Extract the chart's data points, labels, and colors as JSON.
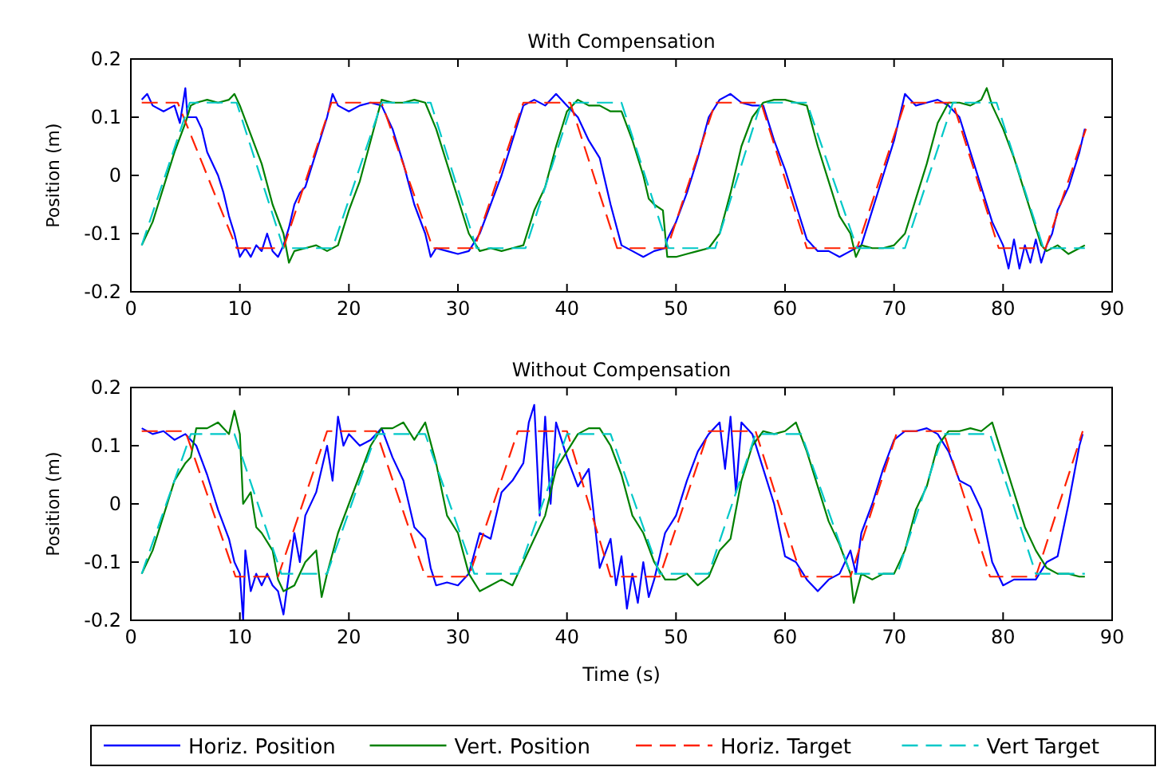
{
  "chart_data": [
    {
      "type": "line",
      "title": "With Compensation",
      "ylabel": "Position (m)",
      "xlim": [
        0,
        90
      ],
      "ylim": [
        -0.2,
        0.2
      ],
      "xticks": [
        0,
        10,
        20,
        30,
        40,
        50,
        60,
        70,
        80,
        90
      ],
      "yticks": [
        -0.2,
        -0.1,
        0,
        0.1,
        0.2
      ],
      "series": [
        {
          "color": "#0000ff",
          "line_style": "solid",
          "x": [
            1,
            1.5,
            2,
            3,
            4,
            4.5,
            5,
            5.2,
            6,
            6.5,
            7,
            8,
            8.5,
            9,
            9.5,
            10,
            10.5,
            11,
            11.5,
            12,
            12.5,
            13,
            13.5,
            14,
            14.5,
            15,
            15.5,
            16,
            17,
            18,
            18.5,
            19,
            20,
            21,
            22,
            23,
            24,
            25,
            26,
            27,
            27.5,
            28,
            29,
            30,
            31,
            32,
            33,
            34,
            35,
            36,
            37,
            38,
            39,
            40,
            41,
            42,
            43,
            44,
            45,
            46,
            47,
            48,
            49,
            49.2,
            50,
            51,
            52,
            53,
            54,
            55,
            56,
            57,
            58,
            59,
            60,
            61,
            62,
            63,
            64,
            65,
            66,
            67,
            68,
            69,
            70,
            71,
            72,
            73,
            74,
            75,
            76,
            77,
            78,
            79,
            80,
            80.5,
            81,
            81.5,
            82,
            82.5,
            83,
            83.5,
            84,
            84.5,
            85,
            86,
            87,
            87.5
          ],
          "values": [
            0.13,
            0.14,
            0.12,
            0.11,
            0.12,
            0.09,
            0.15,
            0.1,
            0.1,
            0.08,
            0.04,
            0,
            -0.03,
            -0.07,
            -0.1,
            -0.14,
            -0.125,
            -0.14,
            -0.12,
            -0.13,
            -0.1,
            -0.13,
            -0.14,
            -0.12,
            -0.09,
            -0.05,
            -0.03,
            -0.02,
            0.04,
            0.1,
            0.14,
            0.12,
            0.11,
            0.12,
            0.125,
            0.12,
            0.08,
            0.02,
            -0.05,
            -0.1,
            -0.14,
            -0.125,
            -0.13,
            -0.135,
            -0.13,
            -0.1,
            -0.05,
            0,
            0.06,
            0.12,
            0.13,
            0.12,
            0.14,
            0.12,
            0.1,
            0.06,
            0.03,
            -0.05,
            -0.12,
            -0.13,
            -0.14,
            -0.13,
            -0.125,
            -0.11,
            -0.08,
            -0.03,
            0.03,
            0.1,
            0.13,
            0.14,
            0.125,
            0.12,
            0.12,
            0.06,
            0.01,
            -0.05,
            -0.11,
            -0.13,
            -0.13,
            -0.14,
            -0.13,
            -0.12,
            -0.06,
            0,
            0.06,
            0.14,
            0.12,
            0.125,
            0.13,
            0.12,
            0.1,
            0.04,
            -0.02,
            -0.08,
            -0.12,
            -0.16,
            -0.11,
            -0.16,
            -0.12,
            -0.15,
            -0.11,
            -0.15,
            -0.12,
            -0.1,
            -0.06,
            -0.02,
            0.04,
            0.08
          ]
        },
        {
          "color": "#008000",
          "line_style": "solid",
          "x": [
            1,
            2,
            3,
            4,
            5,
            5.5,
            6,
            7,
            8,
            9,
            9.5,
            10,
            11,
            12,
            13,
            14,
            14.5,
            15,
            16,
            17,
            18,
            19,
            20,
            21,
            22,
            23,
            24,
            25,
            26,
            27,
            28,
            29,
            30,
            31,
            32,
            33,
            34,
            35,
            36,
            37,
            38,
            39,
            40,
            41,
            42,
            43,
            44,
            45,
            46,
            47,
            47.5,
            48,
            48.8,
            49.2,
            50,
            51,
            52,
            53,
            54,
            55,
            56,
            57,
            58,
            59,
            60,
            61,
            62,
            63,
            64,
            65,
            66,
            66.5,
            67,
            68,
            69,
            70,
            71,
            72,
            73,
            74,
            75,
            76,
            77,
            78,
            78.5,
            79,
            80,
            81,
            82,
            83,
            83.5,
            84,
            85,
            86,
            87,
            87.5
          ],
          "values": [
            -0.12,
            -0.08,
            -0.02,
            0.04,
            0.09,
            0.12,
            0.125,
            0.13,
            0.125,
            0.13,
            0.14,
            0.12,
            0.07,
            0.02,
            -0.05,
            -0.1,
            -0.15,
            -0.13,
            -0.125,
            -0.12,
            -0.13,
            -0.12,
            -0.06,
            -0.01,
            0.06,
            0.13,
            0.125,
            0.125,
            0.13,
            0.125,
            0.08,
            0.02,
            -0.04,
            -0.1,
            -0.13,
            -0.125,
            -0.13,
            -0.125,
            -0.12,
            -0.06,
            -0.02,
            0.05,
            0.11,
            0.13,
            0.12,
            0.12,
            0.11,
            0.11,
            0.06,
            0,
            -0.04,
            -0.05,
            -0.06,
            -0.14,
            -0.14,
            -0.135,
            -0.13,
            -0.125,
            -0.1,
            -0.03,
            0.05,
            0.1,
            0.125,
            0.13,
            0.13,
            0.125,
            0.12,
            0.05,
            -0.01,
            -0.07,
            -0.1,
            -0.14,
            -0.12,
            -0.125,
            -0.125,
            -0.12,
            -0.1,
            -0.04,
            0.02,
            0.09,
            0.125,
            0.125,
            0.12,
            0.13,
            0.15,
            0.12,
            0.08,
            0.03,
            -0.03,
            -0.09,
            -0.12,
            -0.13,
            -0.12,
            -0.135,
            -0.125,
            -0.12
          ]
        },
        {
          "color": "#ff2000",
          "line_style": "dashed",
          "x": [
            1,
            4.3,
            9.7,
            14,
            18.4,
            23,
            27.7,
            31.5,
            36,
            40.3,
            44.6,
            49.2,
            53.6,
            57.8,
            62,
            66.6,
            71,
            75.4,
            79.6,
            83.9,
            87.6
          ],
          "values": [
            0.125,
            0.125,
            -0.125,
            -0.125,
            0.125,
            0.125,
            -0.125,
            -0.125,
            0.125,
            0.125,
            -0.125,
            -0.125,
            0.125,
            0.125,
            -0.125,
            -0.125,
            0.125,
            0.125,
            -0.125,
            -0.125,
            0.08
          ]
        },
        {
          "color": "#00c8c8",
          "line_style": "dashed",
          "x": [
            1,
            5.4,
            9.7,
            14,
            18.5,
            23,
            27.5,
            31.7,
            36.2,
            40.5,
            45,
            49.3,
            53.6,
            57.8,
            62,
            66.6,
            71,
            75.4,
            79.4,
            83.7,
            87.5
          ],
          "values": [
            -0.12,
            0.125,
            0.125,
            -0.125,
            -0.125,
            0.125,
            0.125,
            -0.125,
            -0.125,
            0.125,
            0.125,
            -0.125,
            -0.125,
            0.125,
            0.125,
            -0.125,
            -0.125,
            0.125,
            0.125,
            -0.125,
            -0.125
          ]
        }
      ]
    },
    {
      "type": "line",
      "title": "Without Compensation",
      "xlabel": "Time (s)",
      "ylabel": "Position (m)",
      "xlim": [
        0,
        90
      ],
      "ylim": [
        -0.2,
        0.2
      ],
      "xticks": [
        0,
        10,
        20,
        30,
        40,
        50,
        60,
        70,
        80,
        90
      ],
      "yticks": [
        -0.2,
        -0.1,
        0,
        0.1,
        0.2
      ],
      "legend": "bottom",
      "series": [
        {
          "name": "Horiz. Position",
          "color": "#0000ff",
          "line_style": "solid",
          "x": [
            1,
            2,
            3,
            4,
            5,
            6,
            7,
            8,
            9,
            9.5,
            10,
            10.3,
            10.5,
            11,
            11.5,
            12,
            12.5,
            13,
            13.5,
            14,
            14.5,
            15,
            15.5,
            16,
            17,
            18,
            18.5,
            19,
            19.5,
            20,
            21,
            22,
            23,
            24,
            25,
            26,
            27,
            27.5,
            28,
            29,
            30,
            31,
            32,
            33,
            34,
            35,
            36,
            36.5,
            37,
            37.5,
            38,
            38.5,
            39,
            40,
            41,
            42,
            43,
            44,
            44.5,
            45,
            45.5,
            46,
            46.5,
            47,
            47.5,
            48,
            49,
            50,
            51,
            52,
            53,
            54,
            54.5,
            55,
            55.5,
            56,
            57,
            58,
            59,
            60,
            61,
            62,
            63,
            64,
            65,
            66,
            66.5,
            67,
            68,
            69,
            70,
            71,
            72,
            73,
            74,
            75,
            76,
            77,
            78,
            79,
            80,
            81,
            82,
            83,
            84,
            85,
            86,
            87,
            87.3
          ],
          "values": [
            0.13,
            0.12,
            0.125,
            0.11,
            0.12,
            0.1,
            0.05,
            -0.01,
            -0.06,
            -0.1,
            -0.12,
            -0.2,
            -0.08,
            -0.15,
            -0.12,
            -0.14,
            -0.12,
            -0.14,
            -0.15,
            -0.19,
            -0.12,
            -0.05,
            -0.1,
            -0.02,
            0.02,
            0.1,
            0.04,
            0.15,
            0.1,
            0.12,
            0.1,
            0.11,
            0.13,
            0.08,
            0.04,
            -0.04,
            -0.06,
            -0.11,
            -0.14,
            -0.135,
            -0.14,
            -0.12,
            -0.05,
            -0.06,
            0.02,
            0.04,
            0.07,
            0.14,
            0.17,
            -0.02,
            0.15,
            0,
            0.14,
            0.08,
            0.03,
            0.06,
            -0.11,
            -0.06,
            -0.14,
            -0.09,
            -0.18,
            -0.12,
            -0.17,
            -0.1,
            -0.16,
            -0.13,
            -0.05,
            -0.02,
            0.04,
            0.09,
            0.12,
            0.14,
            0.06,
            0.15,
            0.02,
            0.14,
            0.12,
            0.06,
            0,
            -0.09,
            -0.1,
            -0.13,
            -0.15,
            -0.13,
            -0.12,
            -0.08,
            -0.12,
            -0.05,
            0,
            0.06,
            0.11,
            0.125,
            0.125,
            0.13,
            0.12,
            0.09,
            0.04,
            0.03,
            -0.01,
            -0.1,
            -0.14,
            -0.13,
            -0.13,
            -0.13,
            -0.1,
            -0.09,
            0,
            0.1,
            0.12
          ]
        },
        {
          "name": "Vert. Position",
          "color": "#008000",
          "line_style": "solid",
          "x": [
            1,
            2,
            3,
            4,
            5,
            5.5,
            6,
            7,
            8,
            9,
            9.5,
            10,
            10.3,
            11,
            11.5,
            12,
            13,
            13.5,
            14,
            15,
            16,
            17,
            17.5,
            18,
            19,
            20,
            21,
            22,
            23,
            24,
            25,
            26,
            27,
            28,
            29,
            30,
            31,
            32,
            33,
            34,
            35,
            36,
            37,
            38,
            39,
            40,
            41,
            42,
            43,
            44,
            45,
            46,
            47,
            48,
            49,
            50,
            51,
            52,
            53,
            54,
            55,
            56,
            57,
            58,
            59,
            60,
            61,
            62,
            63,
            64,
            65,
            66,
            66.3,
            67,
            68,
            69,
            70,
            71,
            72,
            73,
            74,
            75,
            76,
            77,
            78,
            79,
            80,
            81,
            82,
            83,
            84,
            85,
            86,
            87,
            87.5
          ],
          "values": [
            -0.12,
            -0.08,
            -0.02,
            0.04,
            0.07,
            0.08,
            0.13,
            0.13,
            0.14,
            0.12,
            0.16,
            0.12,
            0,
            0.02,
            -0.04,
            -0.05,
            -0.08,
            -0.13,
            -0.15,
            -0.14,
            -0.1,
            -0.08,
            -0.16,
            -0.12,
            -0.05,
            0,
            0.05,
            0.1,
            0.13,
            0.13,
            0.14,
            0.11,
            0.14,
            0.07,
            -0.02,
            -0.05,
            -0.12,
            -0.15,
            -0.14,
            -0.13,
            -0.14,
            -0.1,
            -0.06,
            -0.02,
            0.06,
            0.09,
            0.12,
            0.13,
            0.13,
            0.1,
            0.05,
            -0.02,
            -0.05,
            -0.1,
            -0.13,
            -0.13,
            -0.12,
            -0.14,
            -0.125,
            -0.08,
            -0.06,
            0.04,
            0.1,
            0.125,
            0.12,
            0.125,
            0.14,
            0.09,
            0.03,
            -0.03,
            -0.07,
            -0.12,
            -0.17,
            -0.12,
            -0.13,
            -0.12,
            -0.12,
            -0.08,
            -0.01,
            0.03,
            0.1,
            0.125,
            0.125,
            0.13,
            0.125,
            0.14,
            0.08,
            0.02,
            -0.04,
            -0.08,
            -0.11,
            -0.12,
            -0.12,
            -0.125,
            -0.125
          ]
        },
        {
          "name": "Horiz. Target",
          "color": "#ff2000",
          "line_style": "dashed",
          "x": [
            1,
            5,
            9.6,
            13.5,
            18,
            22.5,
            27,
            31,
            35.5,
            40,
            44,
            48.5,
            53,
            57.3,
            61.5,
            66,
            70.3,
            74.5,
            78.8,
            83,
            87.3
          ],
          "values": [
            0.125,
            0.125,
            -0.125,
            -0.125,
            0.125,
            0.125,
            -0.125,
            -0.125,
            0.125,
            0.125,
            -0.125,
            -0.125,
            0.125,
            0.125,
            -0.125,
            -0.125,
            0.125,
            0.125,
            -0.125,
            -0.125,
            0.125
          ]
        },
        {
          "name": "Vert Target",
          "color": "#00c8c8",
          "line_style": "dashed",
          "x": [
            1,
            5.5,
            9.5,
            13.8,
            18,
            22.5,
            27,
            31.5,
            35.5,
            40,
            44,
            48.5,
            53,
            57.3,
            61.5,
            66,
            70.3,
            74.5,
            78.8,
            83,
            87.5
          ],
          "values": [
            -0.12,
            0.12,
            0.12,
            -0.12,
            -0.12,
            0.12,
            0.12,
            -0.12,
            -0.12,
            0.12,
            0.12,
            -0.12,
            -0.12,
            0.12,
            0.12,
            -0.12,
            -0.12,
            0.12,
            0.12,
            -0.12,
            -0.12
          ]
        }
      ]
    }
  ]
}
